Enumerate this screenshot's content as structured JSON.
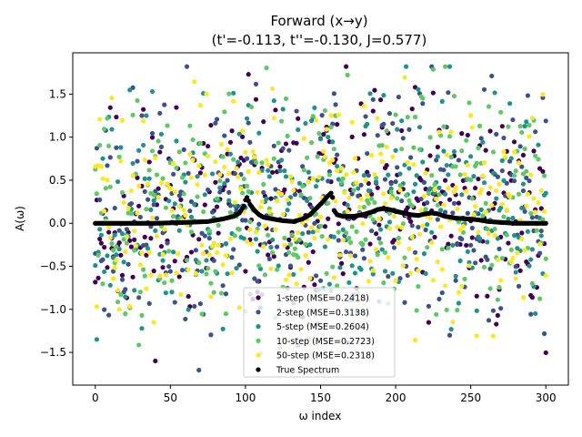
{
  "chart_data": {
    "type": "scatter",
    "title": "Forward (x→y)",
    "subtitle": "(t'=-0.113, t''=-0.130, J=0.577)",
    "xlabel": "ω index",
    "ylabel": "A(ω)",
    "xlim": [
      -15,
      315
    ],
    "ylim": [
      -1.88,
      1.98
    ],
    "xticks": [
      0,
      50,
      100,
      150,
      200,
      250,
      300
    ],
    "yticks": [
      -1.5,
      -1.0,
      -0.5,
      0.0,
      0.5,
      1.0,
      1.5
    ],
    "xtick_labels": [
      "0",
      "50",
      "100",
      "150",
      "200",
      "250",
      "300"
    ],
    "ytick_labels": [
      "−1.5",
      "−1.0",
      "−0.5",
      "0.0",
      "0.5",
      "1.0",
      "1.5"
    ],
    "grid": false,
    "legend_position": "lower-center",
    "n_points": 301,
    "series": [
      {
        "name": "1-step (MSE=0.2418)",
        "color": "#440154",
        "spread": 0.62,
        "seed": 11
      },
      {
        "name": "2-step (MSE=0.3138)",
        "color": "#3b528b",
        "spread": 0.7,
        "seed": 23
      },
      {
        "name": "5-step (MSE=0.2604)",
        "color": "#21918c",
        "spread": 0.64,
        "seed": 37
      },
      {
        "name": "10-step (MSE=0.2723)",
        "color": "#5ec962",
        "spread": 0.66,
        "seed": 51
      },
      {
        "name": "50-step (MSE=0.2318)",
        "color": "#fde725",
        "spread": 0.6,
        "seed": 73
      }
    ],
    "true_spectrum": {
      "name": "True Spectrum",
      "color": "#000000",
      "x": [
        0,
        20,
        40,
        60,
        75,
        85,
        92,
        96,
        99,
        100,
        101,
        103,
        106,
        109,
        112,
        118,
        125,
        132,
        138,
        143,
        147,
        151,
        155,
        157,
        158,
        159,
        161,
        165,
        172,
        178,
        184,
        188,
        192,
        196,
        200,
        205,
        210,
        215,
        220,
        224,
        228,
        233,
        240,
        248,
        255,
        262,
        270,
        280,
        290,
        300
      ],
      "y": [
        0.0,
        0.0,
        0.0,
        0.01,
        0.02,
        0.05,
        0.08,
        0.12,
        0.2,
        0.27,
        0.3,
        0.22,
        0.15,
        0.1,
        0.07,
        0.05,
        0.03,
        0.02,
        0.05,
        0.1,
        0.17,
        0.24,
        0.32,
        0.35,
        0.3,
        0.15,
        0.1,
        0.08,
        0.08,
        0.1,
        0.13,
        0.16,
        0.17,
        0.16,
        0.14,
        0.12,
        0.1,
        0.09,
        0.11,
        0.12,
        0.11,
        0.08,
        0.06,
        0.05,
        0.04,
        0.02,
        0.01,
        0.0,
        0.0,
        0.0
      ]
    }
  }
}
